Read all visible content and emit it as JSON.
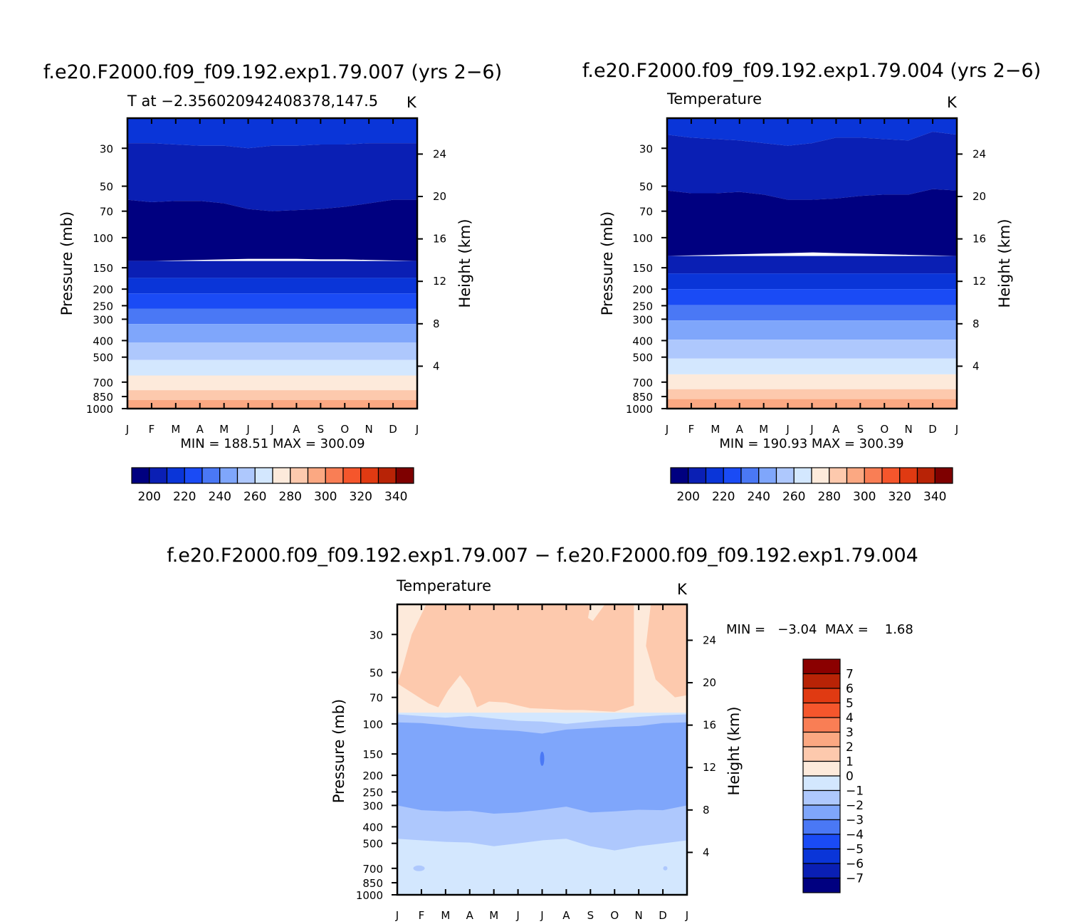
{
  "figure": {
    "panel_a_title": "f.e20.F2000.f09_f09.192.exp1.79.007 (yrs 2−6)",
    "panel_b_title": "f.e20.F2000.f09_f09.192.exp1.79.004 (yrs 2−6)",
    "diff_title": "f.e20.F2000.f09_f09.192.exp1.79.007 − f.e20.F2000.f09_f09.192.exp1.79.004"
  },
  "chart_data": [
    {
      "type": "heatmap",
      "subtitle_left": "T at −2.356020942408378,147.5",
      "subtitle_right": "K",
      "ylabel": "Pressure (mb)",
      "ylabel_right": "Height (km)",
      "x_ticks": [
        "J",
        "F",
        "M",
        "A",
        "M",
        "J",
        "J",
        "A",
        "S",
        "O",
        "N",
        "D",
        "J"
      ],
      "y_ticks": [
        "30",
        "50",
        "70",
        "100",
        "150",
        "200",
        "250",
        "300",
        "400",
        "500",
        "700",
        "850",
        "1000"
      ],
      "y2_ticks": [
        "24",
        "20",
        "16",
        "12",
        "8",
        "4"
      ],
      "stats": "MIN = 188.51 MAX = 300.09",
      "min": 188.51,
      "max": 300.09,
      "colorbar_labels": [
        "200",
        "220",
        "240",
        "260",
        "280",
        "300",
        "320",
        "340"
      ],
      "levels_mb": [
        1000,
        20
      ]
    },
    {
      "type": "heatmap",
      "subtitle_left": "Temperature",
      "subtitle_right": "K",
      "ylabel": "Pressure (mb)",
      "ylabel_right": "Height (km)",
      "x_ticks": [
        "J",
        "F",
        "M",
        "A",
        "M",
        "J",
        "J",
        "A",
        "S",
        "O",
        "N",
        "D",
        "J"
      ],
      "y_ticks": [
        "30",
        "50",
        "70",
        "100",
        "150",
        "200",
        "250",
        "300",
        "400",
        "500",
        "700",
        "850",
        "1000"
      ],
      "y2_ticks": [
        "24",
        "20",
        "16",
        "12",
        "8",
        "4"
      ],
      "stats": "MIN = 190.93 MAX = 300.39",
      "min": 190.93,
      "max": 300.39,
      "colorbar_labels": [
        "200",
        "220",
        "240",
        "260",
        "280",
        "300",
        "320",
        "340"
      ]
    },
    {
      "type": "heatmap",
      "subtitle_left": "Temperature",
      "subtitle_right": "K",
      "ylabel": "Pressure (mb)",
      "ylabel_right": "Height (km)",
      "x_ticks": [
        "J",
        "F",
        "M",
        "A",
        "M",
        "J",
        "J",
        "A",
        "S",
        "O",
        "N",
        "D",
        "J"
      ],
      "y_ticks": [
        "30",
        "50",
        "70",
        "100",
        "150",
        "200",
        "250",
        "300",
        "400",
        "500",
        "700",
        "850",
        "1000"
      ],
      "y2_ticks": [
        "24",
        "20",
        "16",
        "12",
        "8",
        "4"
      ],
      "stats": "MIN =   −3.04  MAX =    1.68",
      "min": -3.04,
      "max": 1.68,
      "colorbar_labels": [
        "7",
        "6",
        "5",
        "4",
        "3",
        "2",
        "1",
        "0",
        "−1",
        "−2",
        "−3",
        "−4",
        "−5",
        "−6",
        "−7"
      ]
    }
  ],
  "colors": {
    "abs_scale": [
      "#000080",
      "#0a1fb4",
      "#0a35d8",
      "#1a4bf5",
      "#4a78f5",
      "#7fa6fb",
      "#aec8fd",
      "#d3e7fe",
      "#fdeadb",
      "#fdc9ad",
      "#fba882",
      "#f97e55",
      "#f5562c",
      "#e03a12",
      "#b82306",
      "#7e0000"
    ],
    "diff_scale": [
      "#8b0000",
      "#b82306",
      "#e03a12",
      "#f5562c",
      "#f97e55",
      "#fba882",
      "#fdc9ad",
      "#fdeadb",
      "#d3e7fe",
      "#aec8fd",
      "#7fa6fb",
      "#4a78f5",
      "#1a4bf5",
      "#0a35d8",
      "#0a1fb4",
      "#000080"
    ]
  }
}
